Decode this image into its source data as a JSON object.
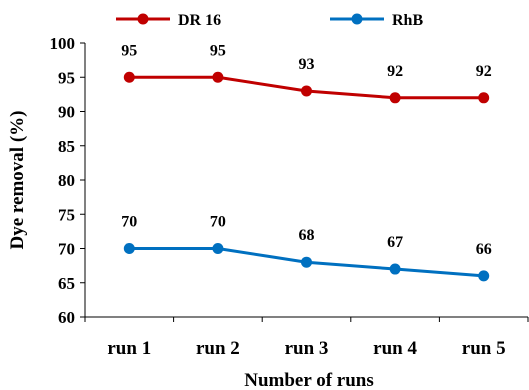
{
  "chart_data": {
    "type": "line",
    "categories": [
      "run 1",
      "run 2",
      "run 3",
      "run 4",
      "run 5"
    ],
    "series": [
      {
        "name": "DR 16",
        "color": "#c00000",
        "values": [
          95,
          95,
          93,
          92,
          92
        ]
      },
      {
        "name": "RhB",
        "color": "#0070c0",
        "values": [
          70,
          70,
          68,
          67,
          66
        ]
      }
    ],
    "title": "",
    "xlabel": "Number of runs",
    "ylabel": "Dye removal (%)",
    "ylim": [
      60,
      100
    ],
    "yticks": [
      60,
      65,
      70,
      75,
      80,
      85,
      90,
      95,
      100
    ],
    "grid": false,
    "legend": "top",
    "data_labels": true
  }
}
